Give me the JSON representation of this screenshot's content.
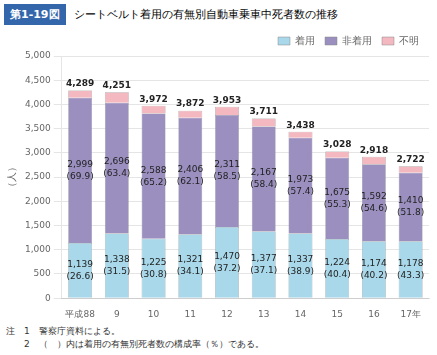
{
  "chart_data": {
    "type": "bar",
    "stacked": true,
    "title": "シートベルト着用の有無別自動車乗車中死者数の推移",
    "annotations": [
      "第1-19図",
      "注　1　警察庁資料による。",
      "　　2　（　）内は着用の有無別死者数の構成率（％）である。"
    ],
    "ylabel": "（人）",
    "categories": [
      "平成88",
      "9",
      "10",
      "11",
      "12",
      "13",
      "14",
      "15",
      "16",
      "17年"
    ],
    "series": [
      {
        "name": "着用",
        "color": "#a8d8ea",
        "values": [
          1139,
          1338,
          1225,
          1321,
          1470,
          1377,
          1337,
          1224,
          1174,
          1178
        ],
        "value_labels": [
          "1,139",
          "1,338",
          "1,225",
          "1,321",
          "1,470",
          "1,377",
          "1,337",
          "1,224",
          "1,174",
          "1,178"
        ],
        "shares": [
          26.6,
          31.5,
          30.8,
          34.1,
          37.2,
          37.1,
          38.9,
          40.4,
          40.2,
          43.3
        ],
        "share_labels": [
          "(26.6)",
          "(31.5)",
          "(30.8)",
          "(34.1)",
          "(37.2)",
          "(37.1)",
          "(38.9)",
          "(40.4)",
          "(40.2)",
          "(43.3)"
        ]
      },
      {
        "name": "非着用",
        "color": "#9b8fc0",
        "values": [
          2999,
          2696,
          2588,
          2406,
          2311,
          2167,
          1973,
          1675,
          1592,
          1410
        ],
        "value_labels": [
          "2,999",
          "2,696",
          "2,588",
          "2,406",
          "2,311",
          "2,167",
          "1,973",
          "1,675",
          "1,592",
          "1,410"
        ],
        "shares": [
          69.9,
          63.4,
          65.2,
          62.1,
          58.5,
          58.4,
          57.4,
          55.3,
          54.6,
          51.8
        ],
        "share_labels": [
          "(69.9)",
          "(63.4)",
          "(65.2)",
          "(62.1)",
          "(58.5)",
          "(58.4)",
          "(57.4)",
          "(55.3)",
          "(54.6)",
          "(51.8)"
        ]
      },
      {
        "name": "不明",
        "color": "#f4b8c1",
        "values": [
          151,
          217,
          159,
          145,
          172,
          167,
          128,
          129,
          152,
          134
        ]
      }
    ],
    "totals": [
      4289,
      4251,
      3972,
      3872,
      3953,
      3711,
      3438,
      3028,
      2918,
      2722
    ],
    "total_labels": [
      "4,289",
      "4,251",
      "3,972",
      "3,872",
      "3,953",
      "3,711",
      "3,438",
      "3,028",
      "2,918",
      "2,722"
    ],
    "data_labels": true,
    "ylim": [
      0,
      5000
    ],
    "yticks": [
      0,
      500,
      {
        "value": 1000,
        "label": "1,000"
      },
      {
        "value": 1500,
        "label": "1,500"
      },
      {
        "value": 2000,
        "label": "2,000"
      },
      {
        "value": 2500,
        "label": "2,500"
      },
      {
        "value": 3000,
        "label": "3,000"
      },
      {
        "value": 3500,
        "label": "3,500"
      },
      {
        "value": 4000,
        "label": "4,000"
      },
      {
        "value": 4500,
        "label": "4,500"
      },
      {
        "value": 5000,
        "label": "5,000"
      }
    ],
    "grid": true,
    "legend": "upper right"
  }
}
